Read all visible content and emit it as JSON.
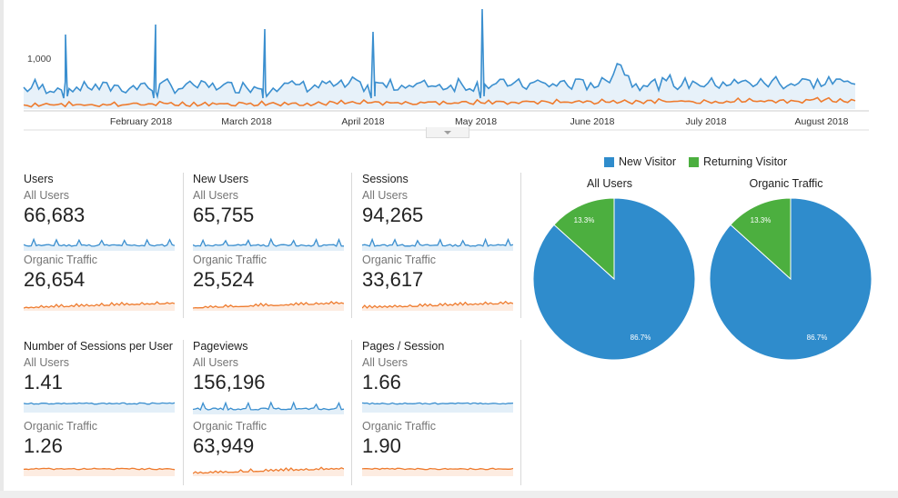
{
  "colors": {
    "blue": "#3b8fcf",
    "orange": "#ee7b2e",
    "green": "#4caf3f",
    "pie_blue": "#2f8ccc",
    "axis": "#cccccc"
  },
  "main_chart": {
    "y_tick": "1,000",
    "x_labels": [
      "February 2018",
      "March 2018",
      "April 2018",
      "May 2018",
      "June 2018",
      "July 2018",
      "August 2018"
    ]
  },
  "metrics": [
    {
      "title": "Users",
      "all_label": "All Users",
      "all_value": "66,683",
      "org_label": "Organic Traffic",
      "org_value": "26,654"
    },
    {
      "title": "New Users",
      "all_label": "All Users",
      "all_value": "65,755",
      "org_label": "Organic Traffic",
      "org_value": "25,524"
    },
    {
      "title": "Sessions",
      "all_label": "All Users",
      "all_value": "94,265",
      "org_label": "Organic Traffic",
      "org_value": "33,617"
    },
    {
      "title": "Number of Sessions per User",
      "all_label": "All Users",
      "all_value": "1.41",
      "org_label": "Organic Traffic",
      "org_value": "1.26"
    },
    {
      "title": "Pageviews",
      "all_label": "All Users",
      "all_value": "156,196",
      "org_label": "Organic Traffic",
      "org_value": "63,949"
    },
    {
      "title": "Pages / Session",
      "all_label": "All Users",
      "all_value": "1.66",
      "org_label": "Organic Traffic",
      "org_value": "1.90"
    }
  ],
  "legend": {
    "new_visitor": "New Visitor",
    "returning_visitor": "Returning Visitor"
  },
  "pies": [
    {
      "title": "All Users",
      "returning_pct": 13.3,
      "new_pct": 86.7,
      "returning_label": "13.3%",
      "new_label": "86.7%"
    },
    {
      "title": "Organic Traffic",
      "returning_pct": 13.3,
      "new_pct": 86.7,
      "returning_label": "13.3%",
      "new_label": "86.7%"
    }
  ]
}
